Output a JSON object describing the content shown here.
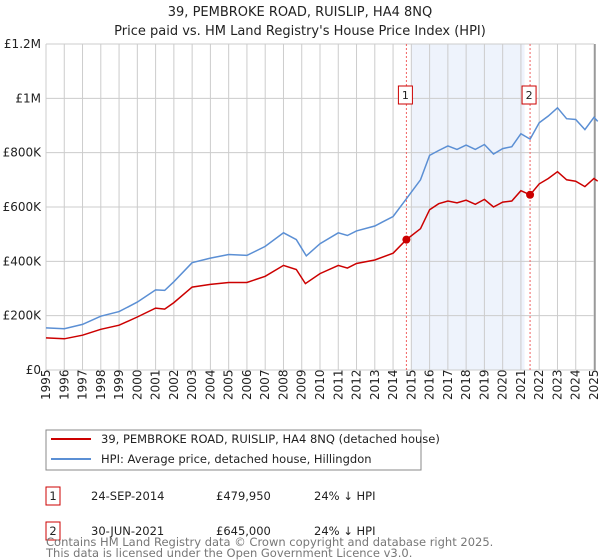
{
  "chart_data": {
    "type": "line",
    "title": "39, PEMBROKE ROAD, RUISLIP, HA4 8NQ",
    "subtitle": "Price paid vs. HM Land Registry's House Price Index (HPI)",
    "xlabel": "",
    "ylabel": "",
    "xlim": [
      1995,
      2025.2
    ],
    "ylim": [
      0,
      1200000
    ],
    "yticks": [
      0,
      200000,
      400000,
      600000,
      800000,
      1000000,
      1200000
    ],
    "ytick_labels": [
      "£0",
      "£200K",
      "£400K",
      "£600K",
      "£800K",
      "£1M",
      "£1.2M"
    ],
    "xticks": [
      "1995",
      "1996",
      "1997",
      "1998",
      "1999",
      "2000",
      "2001",
      "2002",
      "2003",
      "2004",
      "2005",
      "2006",
      "2007",
      "2008",
      "2009",
      "2010",
      "2011",
      "2012",
      "2013",
      "2014",
      "2015",
      "2016",
      "2017",
      "2018",
      "2019",
      "2020",
      "2021",
      "2022",
      "2023",
      "2024",
      "2025"
    ],
    "grid": true,
    "shaded_range": [
      2015.0,
      2021.2
    ],
    "series": [
      {
        "name": "39, PEMBROKE ROAD, RUISLIP, HA4 8NQ (detached house)",
        "color": "#cc0000",
        "x": [
          1995,
          1996,
          1997,
          1998,
          1999,
          2000,
          2001,
          2001.5,
          2002,
          2003,
          2004,
          2005,
          2006,
          2007,
          2008,
          2008.7,
          2009.2,
          2010,
          2011,
          2011.5,
          2012,
          2013,
          2014,
          2014.73,
          2015.5,
          2016,
          2016.5,
          2017,
          2017.5,
          2018,
          2018.5,
          2019,
          2019.5,
          2020,
          2020.5,
          2021,
          2021.5,
          2022,
          2022.5,
          2023,
          2023.5,
          2024,
          2024.5,
          2025,
          2025.2
        ],
        "y": [
          118000,
          115000,
          128000,
          150000,
          165000,
          195000,
          228000,
          224000,
          248000,
          305000,
          315000,
          322000,
          322000,
          345000,
          385000,
          370000,
          318000,
          355000,
          385000,
          375000,
          392000,
          405000,
          430000,
          480000,
          520000,
          590000,
          612000,
          622000,
          615000,
          625000,
          610000,
          628000,
          600000,
          618000,
          622000,
          660000,
          645000,
          685000,
          705000,
          730000,
          700000,
          695000,
          675000,
          705000,
          695000
        ]
      },
      {
        "name": "HPI: Average price, detached house, Hillingdon",
        "color": "#5b8fd4",
        "x": [
          1995,
          1996,
          1997,
          1998,
          1999,
          2000,
          2001,
          2001.5,
          2002,
          2003,
          2004,
          2005,
          2006,
          2007,
          2008,
          2008.7,
          2009.25,
          2010,
          2011,
          2011.5,
          2012,
          2013,
          2014,
          2014.7,
          2015.5,
          2016,
          2016.5,
          2017,
          2017.5,
          2018,
          2018.5,
          2019,
          2019.5,
          2020,
          2020.5,
          2021,
          2021.5,
          2022,
          2022.5,
          2023,
          2023.5,
          2024,
          2024.5,
          2025,
          2025.2
        ],
        "y": [
          155000,
          152000,
          168000,
          198000,
          215000,
          250000,
          295000,
          293000,
          325000,
          395000,
          412000,
          425000,
          422000,
          455000,
          505000,
          480000,
          420000,
          465000,
          505000,
          495000,
          512000,
          530000,
          565000,
          628000,
          700000,
          790000,
          808000,
          825000,
          812000,
          828000,
          812000,
          830000,
          795000,
          815000,
          822000,
          870000,
          850000,
          910000,
          935000,
          965000,
          925000,
          922000,
          885000,
          930000,
          915000
        ]
      }
    ],
    "annotations": [
      {
        "label": "1",
        "x": 2014.73,
        "y": 479950
      },
      {
        "label": "2",
        "x": 2021.5,
        "y": 645000
      }
    ]
  },
  "legend": {
    "items": [
      {
        "label": "39, PEMBROKE ROAD, RUISLIP, HA4 8NQ (detached house)",
        "color": "#cc0000"
      },
      {
        "label": "HPI: Average price, detached house, Hillingdon",
        "color": "#5b8fd4"
      }
    ]
  },
  "sales": [
    {
      "num": "1",
      "date": "24-SEP-2014",
      "price": "£479,950",
      "hpi": "24% ↓ HPI"
    },
    {
      "num": "2",
      "date": "30-JUN-2021",
      "price": "£645,000",
      "hpi": "24% ↓ HPI"
    }
  ],
  "footer": {
    "line1": "Contains HM Land Registry data © Crown copyright and database right 2025.",
    "line2": "This data is licensed under the Open Government Licence v3.0."
  }
}
